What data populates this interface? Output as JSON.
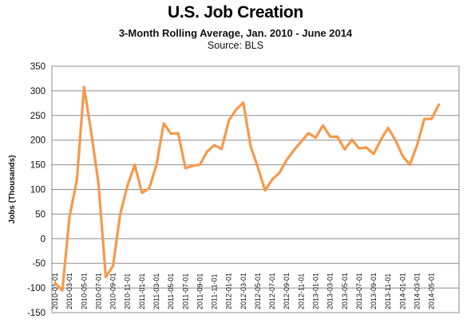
{
  "chart_data": {
    "type": "line",
    "title": "U.S. Job Creation",
    "subtitle": "3-Month Rolling Average, Jan. 2010 - June 2014",
    "source": "Source: BLS",
    "ylabel": "Jobs (Thousands)",
    "xlabel": "",
    "ylim": [
      -150,
      350
    ],
    "yticks": [
      350,
      300,
      250,
      200,
      150,
      100,
      50,
      0,
      -50,
      -100,
      -150
    ],
    "grid": "horizontal",
    "line_color": "#f7994a",
    "x_tick_labels": [
      "2010-01-01",
      "2010-03-01",
      "2010-05-01",
      "2010-07-01",
      "2010-09-01",
      "2010-11-01",
      "2011-01-01",
      "2011-03-01",
      "2011-05-01",
      "2011-07-01",
      "2011-09-01",
      "2011-11-01",
      "2012-01-01",
      "2012-03-01",
      "2012-05-01",
      "2012-07-01",
      "2012-09-01",
      "2012-11-01",
      "2013-01-01",
      "2013-03-01",
      "2013-05-01",
      "2013-07-01",
      "2013-09-01",
      "2013-11-01",
      "2014-01-01",
      "2014-03-01",
      "2014-05-01"
    ],
    "x": [
      "2010-01",
      "2010-02",
      "2010-03",
      "2010-04",
      "2010-05",
      "2010-06",
      "2010-07",
      "2010-08",
      "2010-09",
      "2010-10",
      "2010-11",
      "2010-12",
      "2011-01",
      "2011-02",
      "2011-03",
      "2011-04",
      "2011-05",
      "2011-06",
      "2011-07",
      "2011-08",
      "2011-09",
      "2011-10",
      "2011-11",
      "2011-12",
      "2012-01",
      "2012-02",
      "2012-03",
      "2012-04",
      "2012-05",
      "2012-06",
      "2012-07",
      "2012-08",
      "2012-09",
      "2012-10",
      "2012-11",
      "2012-12",
      "2013-01",
      "2013-02",
      "2013-03",
      "2013-04",
      "2013-05",
      "2013-06",
      "2013-07",
      "2013-08",
      "2013-09",
      "2013-10",
      "2013-11",
      "2013-12",
      "2014-01",
      "2014-02",
      "2014-03",
      "2014-04",
      "2014-05",
      "2014-06"
    ],
    "series": [
      {
        "name": "",
        "values": [
          -90,
          -105,
          45,
          118,
          308,
          215,
          112,
          -78,
          -55,
          50,
          108,
          150,
          93,
          102,
          150,
          234,
          213,
          214,
          143,
          148,
          150,
          177,
          190,
          182,
          240,
          262,
          276,
          188,
          145,
          98,
          120,
          134,
          160,
          180,
          197,
          214,
          205,
          230,
          207,
          207,
          181,
          201,
          183,
          185,
          172,
          201,
          225,
          200,
          168,
          150,
          190,
          243,
          243,
          272
        ]
      }
    ]
  }
}
